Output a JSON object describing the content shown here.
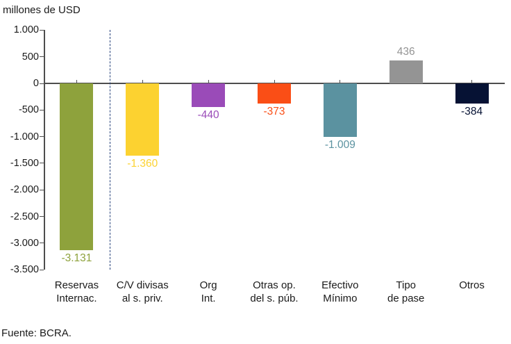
{
  "chart": {
    "title": "millones de USD",
    "source": "Fuente: BCRA."
  },
  "chart_data": {
    "type": "bar",
    "title": "millones de USD",
    "unit": "millones de USD",
    "categories": [
      "Reservas Internac.",
      "C/V divisas al s. priv.",
      "Org Int.",
      "Otras op. del s. púb.",
      "Efectivo Mínimo",
      "Tipo de pase",
      "Otros"
    ],
    "category_lines": [
      [
        "Reservas",
        "Internac."
      ],
      [
        "C/V divisas",
        "al s. priv."
      ],
      [
        "Org",
        "Int."
      ],
      [
        "Otras op.",
        "del s. púb."
      ],
      [
        "Efectivo",
        "Mínimo"
      ],
      [
        "Tipo",
        "de pase"
      ],
      [
        "Otros",
        ""
      ]
    ],
    "values": [
      -3131,
      -1360,
      -440,
      -373,
      -1009,
      436,
      -384
    ],
    "value_labels": [
      "-3.131",
      "-1.360",
      "-440",
      "-373",
      "-1.009",
      "436",
      "-384"
    ],
    "bar_colors": [
      "#8EA23C",
      "#FCD230",
      "#9A4BB8",
      "#FA4E16",
      "#5B92A0",
      "#949494",
      "#061234"
    ],
    "y_tick_values": [
      1000,
      500,
      0,
      -500,
      -1000,
      -1500,
      -2000,
      -2500,
      -3000,
      -3500
    ],
    "y_tick_labels": [
      "1.000",
      "500",
      "0",
      "-500",
      "-1.000",
      "-1.500",
      "-2.000",
      "-2.500",
      "-3.000",
      "-3.500"
    ],
    "ylim": [
      -3500,
      1000
    ],
    "grid": false,
    "legend": null,
    "separator_after_category": 0,
    "separator_color": "#24407A",
    "axis_color": "#4D4D4D",
    "text_color": "#1A1A1A",
    "source": "Fuente: BCRA."
  }
}
